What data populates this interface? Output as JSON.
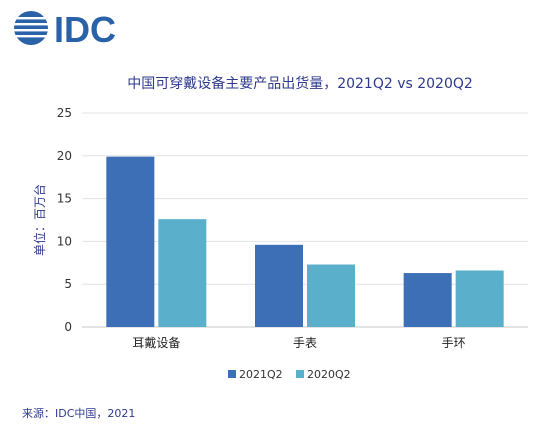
{
  "brand": {
    "logo_text": "IDC",
    "color": "#2a62a8"
  },
  "source": "来源：IDC中国，2021",
  "chart_data": {
    "type": "bar",
    "title": "中国可穿戴设备主要产品出货量，2021Q2 vs 2020Q2",
    "ylabel": "单位：百万台",
    "xlabel": "",
    "categories": [
      "耳戴设备",
      "手表",
      "手环"
    ],
    "series": [
      {
        "name": "2021Q2",
        "values": [
          19.9,
          9.6,
          6.3
        ],
        "color": "#3d6fb6"
      },
      {
        "name": "2020Q2",
        "values": [
          12.6,
          7.3,
          6.6
        ],
        "color": "#5aafca"
      }
    ],
    "ylim": [
      0,
      25
    ],
    "yticks": [
      0,
      5,
      10,
      15,
      20,
      25
    ],
    "grid": true,
    "legend": "bottom"
  }
}
